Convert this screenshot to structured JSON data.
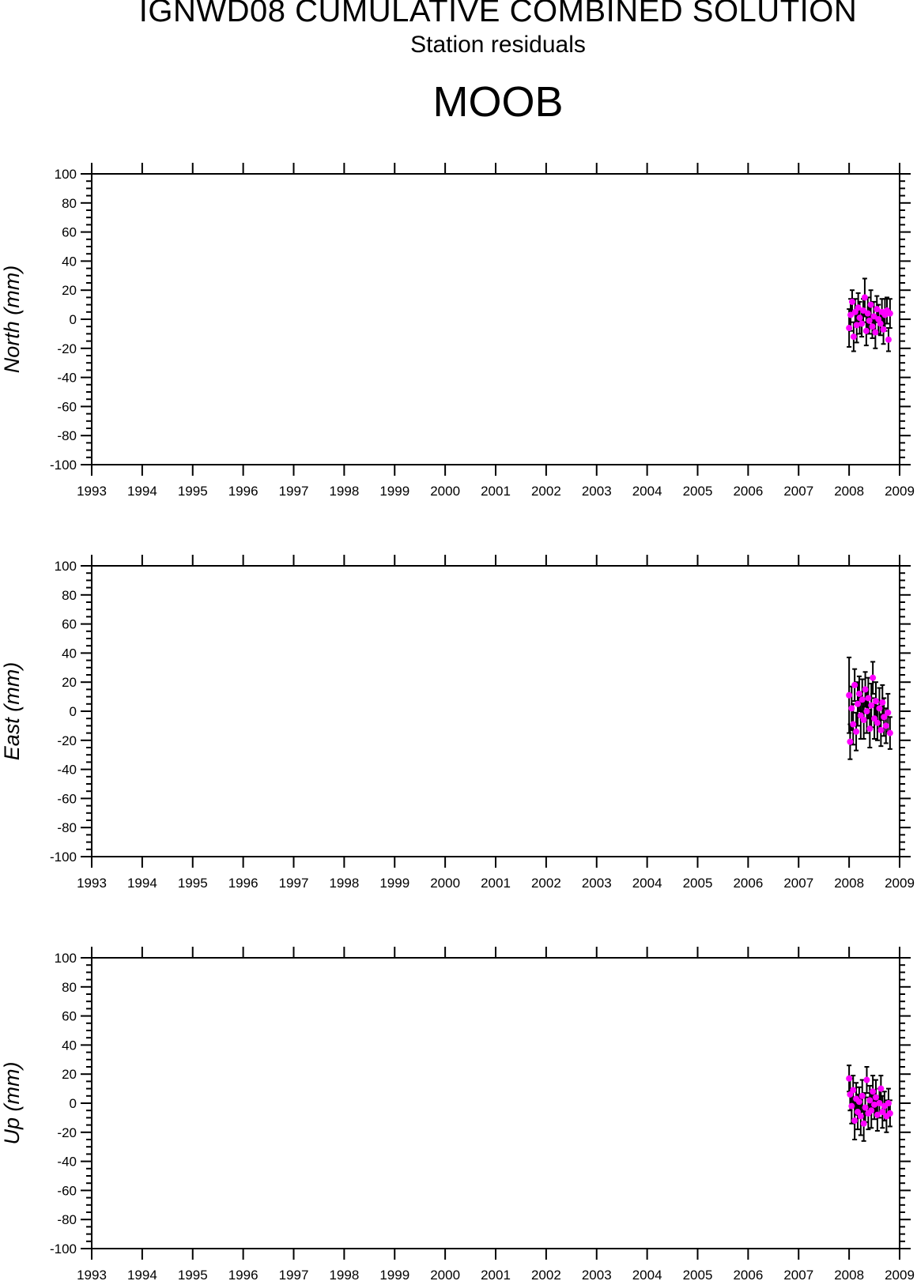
{
  "title": "IGNWD08 CUMULATIVE COMBINED SOLUTION",
  "subtitle": "Station residuals",
  "station": "MOOB",
  "colors": {
    "point": "#ff00ff",
    "errorbar": "#000000",
    "axis": "#000000"
  },
  "chart_data": [
    {
      "type": "scatter",
      "ylabel": "North (mm)",
      "xlim": [
        1993,
        2009
      ],
      "ylim": [
        -100,
        100
      ],
      "x_ticks": [
        "1993",
        "1994",
        "1995",
        "1996",
        "1997",
        "1998",
        "1999",
        "2000",
        "2001",
        "2002",
        "2003",
        "2004",
        "2005",
        "2006",
        "2007",
        "2008",
        "2009"
      ],
      "y_ticks": [
        "100",
        "80",
        "60",
        "40",
        "20",
        "0",
        "-20",
        "-40",
        "-60",
        "-80",
        "-100"
      ],
      "points": [
        {
          "x": 2008.0,
          "y": -6,
          "err": 13
        },
        {
          "x": 2008.03,
          "y": 3,
          "err": 11
        },
        {
          "x": 2008.06,
          "y": 12,
          "err": 8
        },
        {
          "x": 2008.09,
          "y": -12,
          "err": 10
        },
        {
          "x": 2008.12,
          "y": 5,
          "err": 9
        },
        {
          "x": 2008.15,
          "y": -4,
          "err": 12
        },
        {
          "x": 2008.18,
          "y": 8,
          "err": 10
        },
        {
          "x": 2008.21,
          "y": 1,
          "err": 11
        },
        {
          "x": 2008.25,
          "y": -3,
          "err": 9
        },
        {
          "x": 2008.28,
          "y": 6,
          "err": 8
        },
        {
          "x": 2008.31,
          "y": 15,
          "err": 13
        },
        {
          "x": 2008.34,
          "y": -8,
          "err": 10
        },
        {
          "x": 2008.37,
          "y": 4,
          "err": 11
        },
        {
          "x": 2008.4,
          "y": -1,
          "err": 9
        },
        {
          "x": 2008.43,
          "y": 10,
          "err": 10
        },
        {
          "x": 2008.46,
          "y": -5,
          "err": 8
        },
        {
          "x": 2008.49,
          "y": 2,
          "err": 10
        },
        {
          "x": 2008.52,
          "y": -9,
          "err": 11
        },
        {
          "x": 2008.55,
          "y": 7,
          "err": 9
        },
        {
          "x": 2008.58,
          "y": 0,
          "err": 10
        },
        {
          "x": 2008.62,
          "y": -3,
          "err": 8
        },
        {
          "x": 2008.65,
          "y": 5,
          "err": 9
        },
        {
          "x": 2008.68,
          "y": -7,
          "err": 10
        },
        {
          "x": 2008.71,
          "y": 3,
          "err": 11
        },
        {
          "x": 2008.75,
          "y": 6,
          "err": 9
        },
        {
          "x": 2008.78,
          "y": -14,
          "err": 8
        },
        {
          "x": 2008.81,
          "y": 4,
          "err": 10
        }
      ]
    },
    {
      "type": "scatter",
      "ylabel": "East (mm)",
      "xlim": [
        1993,
        2009
      ],
      "ylim": [
        -100,
        100
      ],
      "x_ticks": [
        "1993",
        "1994",
        "1995",
        "1996",
        "1997",
        "1998",
        "1999",
        "2000",
        "2001",
        "2002",
        "2003",
        "2004",
        "2005",
        "2006",
        "2007",
        "2008",
        "2009"
      ],
      "y_ticks": [
        "100",
        "80",
        "60",
        "40",
        "20",
        "0",
        "-20",
        "-40",
        "-60",
        "-80",
        "-100"
      ],
      "points": [
        {
          "x": 2008.0,
          "y": 11,
          "err": 26
        },
        {
          "x": 2008.02,
          "y": -21,
          "err": 12
        },
        {
          "x": 2008.05,
          "y": 2,
          "err": 15
        },
        {
          "x": 2008.08,
          "y": -9,
          "err": 14
        },
        {
          "x": 2008.11,
          "y": 18,
          "err": 11
        },
        {
          "x": 2008.14,
          "y": -14,
          "err": 13
        },
        {
          "x": 2008.17,
          "y": 5,
          "err": 15
        },
        {
          "x": 2008.2,
          "y": 12,
          "err": 12
        },
        {
          "x": 2008.23,
          "y": -3,
          "err": 16
        },
        {
          "x": 2008.26,
          "y": 8,
          "err": 14
        },
        {
          "x": 2008.29,
          "y": -6,
          "err": 13
        },
        {
          "x": 2008.32,
          "y": 15,
          "err": 12
        },
        {
          "x": 2008.35,
          "y": 0,
          "err": 15
        },
        {
          "x": 2008.38,
          "y": 9,
          "err": 14
        },
        {
          "x": 2008.41,
          "y": -12,
          "err": 13
        },
        {
          "x": 2008.44,
          "y": 4,
          "err": 15
        },
        {
          "x": 2008.47,
          "y": 23,
          "err": 11
        },
        {
          "x": 2008.5,
          "y": -5,
          "err": 14
        },
        {
          "x": 2008.53,
          "y": 7,
          "err": 13
        },
        {
          "x": 2008.56,
          "y": -8,
          "err": 12
        },
        {
          "x": 2008.6,
          "y": 2,
          "err": 14
        },
        {
          "x": 2008.63,
          "y": -13,
          "err": 11
        },
        {
          "x": 2008.66,
          "y": 6,
          "err": 12
        },
        {
          "x": 2008.69,
          "y": -4,
          "err": 13
        },
        {
          "x": 2008.73,
          "y": -10,
          "err": 12
        },
        {
          "x": 2008.77,
          "y": -1,
          "err": 13
        },
        {
          "x": 2008.81,
          "y": -15,
          "err": 11
        }
      ]
    },
    {
      "type": "scatter",
      "ylabel": "Up (mm)",
      "xlim": [
        1993,
        2009
      ],
      "ylim": [
        -100,
        100
      ],
      "x_ticks": [
        "1993",
        "1994",
        "1995",
        "1996",
        "1997",
        "1998",
        "1999",
        "2000",
        "2001",
        "2002",
        "2003",
        "2004",
        "2005",
        "2006",
        "2007",
        "2008",
        "2009"
      ],
      "y_ticks": [
        "100",
        "80",
        "60",
        "40",
        "20",
        "0",
        "-20",
        "-40",
        "-60",
        "-80",
        "-100"
      ],
      "points": [
        {
          "x": 2008.0,
          "y": 17,
          "err": 9
        },
        {
          "x": 2008.02,
          "y": 6,
          "err": 11
        },
        {
          "x": 2008.05,
          "y": -2,
          "err": 12
        },
        {
          "x": 2008.08,
          "y": 9,
          "err": 10
        },
        {
          "x": 2008.11,
          "y": -12,
          "err": 13
        },
        {
          "x": 2008.14,
          "y": 3,
          "err": 11
        },
        {
          "x": 2008.17,
          "y": -6,
          "err": 12
        },
        {
          "x": 2008.2,
          "y": 1,
          "err": 10
        },
        {
          "x": 2008.23,
          "y": -9,
          "err": 13
        },
        {
          "x": 2008.26,
          "y": 5,
          "err": 11
        },
        {
          "x": 2008.29,
          "y": -14,
          "err": 12
        },
        {
          "x": 2008.32,
          "y": -3,
          "err": 10
        },
        {
          "x": 2008.35,
          "y": 16,
          "err": 9
        },
        {
          "x": 2008.38,
          "y": -7,
          "err": 11
        },
        {
          "x": 2008.41,
          "y": 2,
          "err": 10
        },
        {
          "x": 2008.44,
          "y": -5,
          "err": 12
        },
        {
          "x": 2008.47,
          "y": 8,
          "err": 11
        },
        {
          "x": 2008.5,
          "y": -1,
          "err": 10
        },
        {
          "x": 2008.53,
          "y": 4,
          "err": 12
        },
        {
          "x": 2008.56,
          "y": -8,
          "err": 11
        },
        {
          "x": 2008.6,
          "y": 0,
          "err": 10
        },
        {
          "x": 2008.63,
          "y": 10,
          "err": 9
        },
        {
          "x": 2008.66,
          "y": -6,
          "err": 11
        },
        {
          "x": 2008.7,
          "y": -2,
          "err": 10
        },
        {
          "x": 2008.74,
          "y": -9,
          "err": 11
        },
        {
          "x": 2008.78,
          "y": 0,
          "err": 10
        },
        {
          "x": 2008.81,
          "y": -7,
          "err": 9
        }
      ]
    }
  ]
}
